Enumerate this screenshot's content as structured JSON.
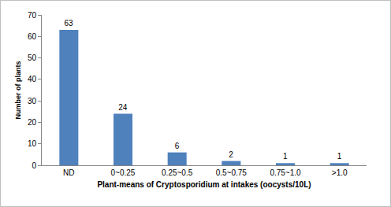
{
  "chart_data": {
    "type": "bar",
    "x_label": "Plant-means of Cryptosporidium at intakes (oocysts/10L)",
    "y_label": "Number of plants",
    "categories": [
      "ND",
      "0~0.25",
      "0.25~0.5",
      "0.5~0.75",
      "0.75~1.0",
      ">1.0"
    ],
    "values": [
      63,
      24,
      6,
      2,
      1,
      1
    ],
    "color": "#4f81bd",
    "ylim": [
      0,
      70
    ],
    "yticks": [
      0,
      10,
      20,
      30,
      40,
      50,
      60,
      70
    ],
    "grid": false,
    "data_labels": true
  }
}
